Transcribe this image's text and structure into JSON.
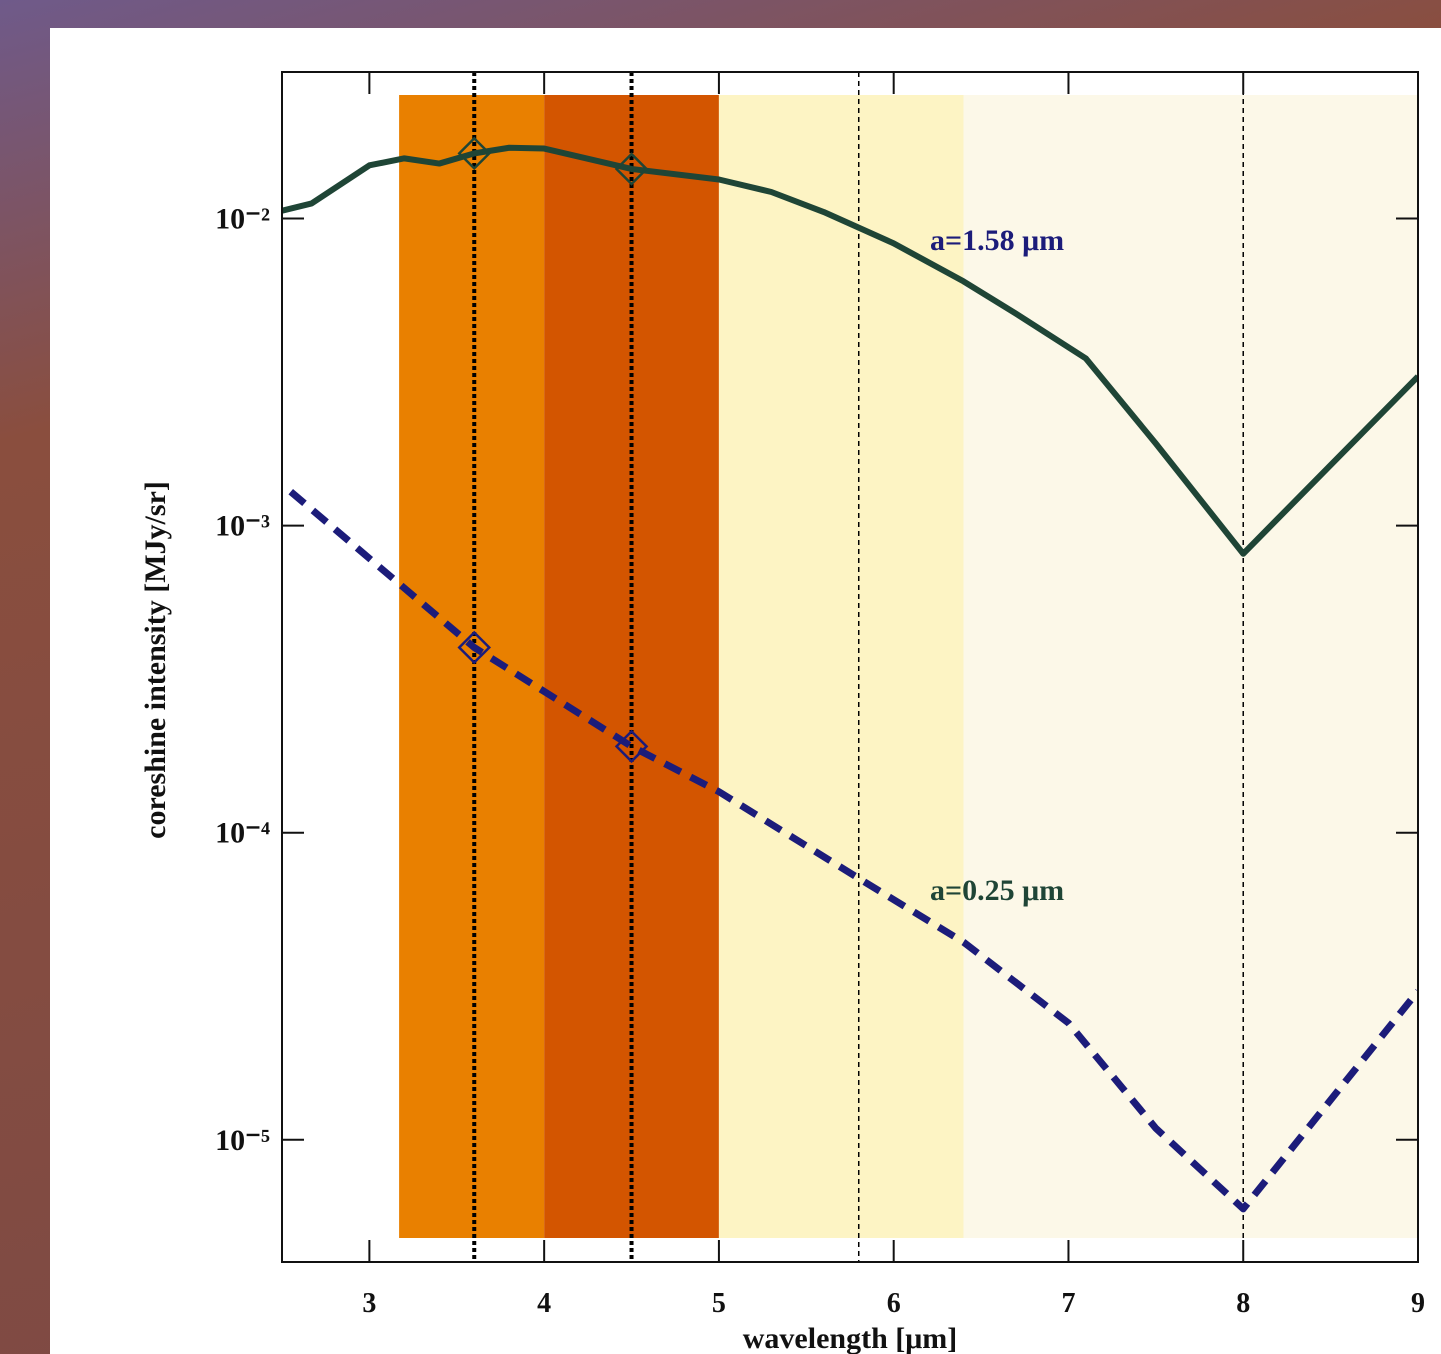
{
  "chart_data": {
    "type": "line",
    "xlabel": "wavelength [μm]",
    "ylabel": "coreshine intensity [MJy/sr]",
    "xlim": [
      2.5,
      9
    ],
    "ylim": [
      4e-06,
      0.03
    ],
    "log_y": true,
    "xticks": [
      3,
      4,
      5,
      6,
      7,
      8,
      9
    ],
    "yticks": [
      {
        "value": 1e-05,
        "label": "10⁻⁵"
      },
      {
        "value": 0.0001,
        "label": "10⁻⁴"
      },
      {
        "value": 0.001,
        "label": "10⁻³"
      },
      {
        "value": 0.01,
        "label": "10⁻²"
      }
    ],
    "bands": [
      {
        "from": 3.17,
        "to": 4.0,
        "color": "#e98000"
      },
      {
        "from": 4.0,
        "to": 5.0,
        "color": "#d35500"
      },
      {
        "from": 5.0,
        "to": 6.4,
        "color": "#fdf4c4"
      },
      {
        "from": 6.4,
        "to": 9.0,
        "color": "#fcf8e8"
      }
    ],
    "vlines_bold": [
      3.6,
      4.5
    ],
    "vlines": [
      5.8,
      8.0
    ],
    "marker_x": [
      3.6,
      4.5
    ],
    "series": [
      {
        "name": "a=1.58 μm",
        "color": "#1f4536",
        "label_color": "#1c1c7a",
        "style": "solid",
        "x": [
          2.5,
          2.67,
          3.0,
          3.2,
          3.4,
          3.6,
          3.8,
          4.0,
          4.5,
          5.0,
          5.3,
          5.6,
          6.0,
          6.4,
          6.7,
          7.1,
          7.5,
          8.0,
          9.0
        ],
        "values": [
          0.0106,
          0.0112,
          0.0149,
          0.0157,
          0.0151,
          0.0163,
          0.017,
          0.0169,
          0.0145,
          0.0134,
          0.0122,
          0.0105,
          0.0083,
          0.00624,
          0.0049,
          0.0035,
          0.00185,
          0.00081,
          0.00306
        ]
      },
      {
        "name": "a=0.25 μm",
        "color": "#1c1c7a",
        "label_color": "#1f4536",
        "style": "dashed",
        "x": [
          2.55,
          3.6,
          4.5,
          5.0,
          5.8,
          6.4,
          7.0,
          7.5,
          8.0,
          9.0
        ],
        "values": [
          0.00129,
          0.000401,
          0.000191,
          0.000136,
          7.1e-05,
          4.4e-05,
          2.4e-05,
          1.09e-05,
          5.96e-06,
          3.05e-05
        ]
      }
    ]
  }
}
